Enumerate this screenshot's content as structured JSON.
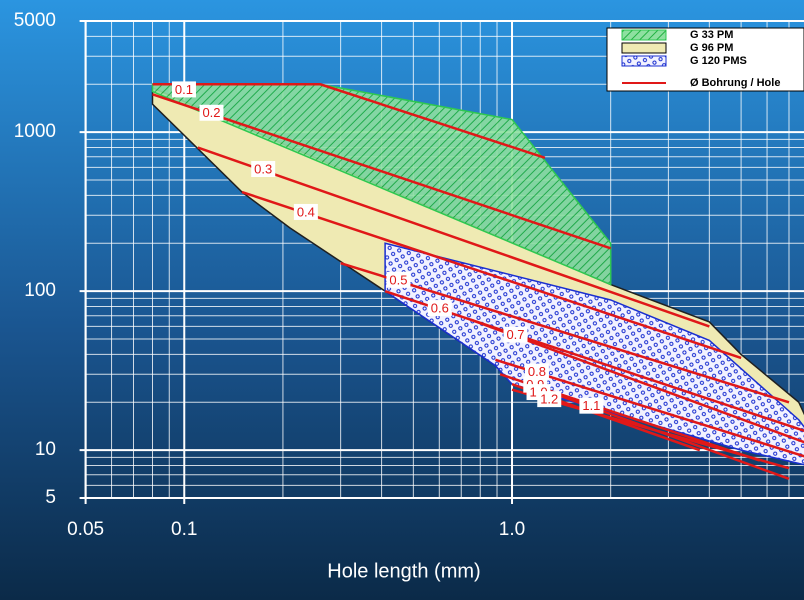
{
  "chart_data": {
    "type": "area",
    "x_label": "Hole length (mm)",
    "log_x": true,
    "log_y": true,
    "grid": true,
    "xlim": [
      0.05,
      8
    ],
    "ylim": [
      5,
      5000
    ],
    "xticks": [
      0.05,
      0.1,
      {
        "value": 1,
        "label": "1.0"
      }
    ],
    "yticks": [
      5,
      10,
      100,
      1000,
      5000
    ],
    "legend": "top-right",
    "regions": [
      {
        "name": "G 96 PM",
        "color": "#efeab3",
        "edge": "#202020",
        "pattern": "solid",
        "x": [
          0.08,
          2.0,
          4.0,
          5.0,
          7.5,
          8,
          8,
          7.5,
          1.0,
          0.89,
          0.41,
          0.21,
          0.15,
          0.08
        ],
        "values": [
          1900,
          110,
          64,
          40,
          20,
          15,
          9,
          8.6,
          26,
          34,
          100,
          250,
          420,
          1500
        ]
      },
      {
        "name": "G 120 PMS",
        "color": "#1a2fd0",
        "edge": "#1a2fd0",
        "pattern": "dots",
        "x": [
          0.41,
          2.0,
          4.0,
          7.5,
          8,
          8,
          5.0,
          1.0,
          0.89,
          0.41
        ],
        "values": [
          200,
          88,
          49,
          15.5,
          13,
          8,
          10,
          26,
          34,
          100
        ]
      },
      {
        "name": "G 33 PM",
        "color": "#2ec850",
        "edge": "#2ec850",
        "pattern": "hatch",
        "x": [
          0.08,
          0.26,
          1.0,
          2.0,
          2.0,
          0.08
        ],
        "values": [
          2000,
          2000,
          1200,
          200,
          110,
          1800
        ]
      }
    ],
    "hole_lines": {
      "name": "Ø Bohrung / Hole",
      "color": "#e01818",
      "lines": [
        {
          "label": "0.1",
          "x": [
            0.08,
            0.26,
            1.26
          ],
          "values": [
            2000,
            2000,
            690
          ]
        },
        {
          "label": "0.2",
          "x": [
            0.08,
            2.0
          ],
          "values": [
            1730,
            186
          ]
        },
        {
          "label": "0.3",
          "x": [
            0.11,
            4.0
          ],
          "values": [
            800,
            60
          ]
        },
        {
          "label": "0.4",
          "x": [
            0.15,
            5.0
          ],
          "values": [
            420,
            38
          ]
        },
        {
          "label": "0.5",
          "x": [
            0.3,
            7
          ],
          "values": [
            150,
            20
          ]
        },
        {
          "label": "0.6",
          "x": [
            0.41,
            8
          ],
          "values": [
            100,
            13
          ]
        },
        {
          "label": "0.7",
          "x": [
            0.75,
            8
          ],
          "values": [
            66,
            11
          ]
        },
        {
          "label": "0.8",
          "x": [
            0.89,
            8
          ],
          "values": [
            37,
            9
          ]
        },
        {
          "label": "0.9",
          "x": [
            0.92,
            5.7
          ],
          "values": [
            30,
            8.6
          ]
        },
        {
          "label": "1.0",
          "x": [
            1.0,
            3.74
          ],
          "values": [
            26,
            10
          ]
        },
        {
          "label": "1.1",
          "x": [
            1.4,
            7
          ],
          "values": [
            22,
            6.6
          ]
        },
        {
          "label": "1.2",
          "x": [
            1.0,
            7
          ],
          "values": [
            24,
            7.7
          ]
        }
      ]
    }
  }
}
